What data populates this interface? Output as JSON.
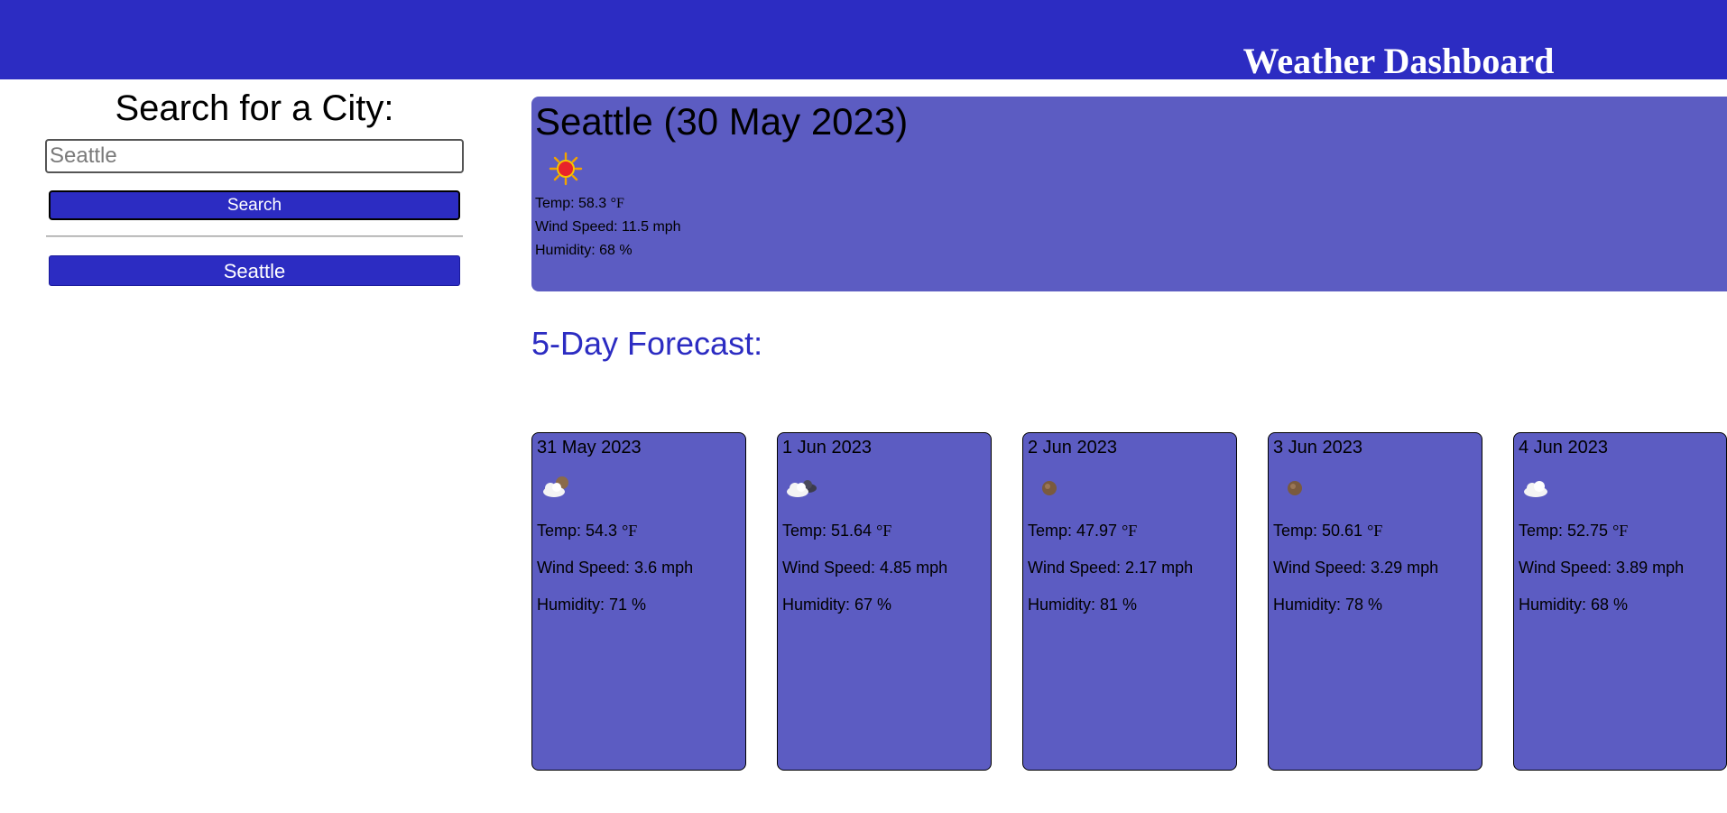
{
  "header": {
    "title": "Weather Dashboard"
  },
  "search": {
    "heading": "Search for a City:",
    "placeholder": "Seattle",
    "value": "",
    "button_label": "Search",
    "history": [
      "Seattle"
    ]
  },
  "current": {
    "title": "Seattle (30 May 2023)",
    "icon": "sun-icon",
    "temp_label": "Temp: 58.3 ",
    "temp_unit": "°F",
    "wind": "Wind Speed: 11.5 mph",
    "humidity": "Humidity: 68 %"
  },
  "forecast": {
    "heading": "5-Day Forecast:",
    "days": [
      {
        "date": "31 May 2023",
        "icon": "cloud-moon-icon",
        "temp_label": "Temp: 54.3 ",
        "temp_unit": "°F",
        "wind": "Wind Speed: 3.6 mph",
        "humidity": "Humidity: 71 %"
      },
      {
        "date": "1 Jun 2023",
        "icon": "cloud-dark-icon",
        "temp_label": "Temp: 51.64 ",
        "temp_unit": "°F",
        "wind": "Wind Speed: 4.85 mph",
        "humidity": "Humidity: 67 %"
      },
      {
        "date": "2 Jun 2023",
        "icon": "moon-icon",
        "temp_label": "Temp: 47.97 ",
        "temp_unit": "°F",
        "wind": "Wind Speed: 2.17 mph",
        "humidity": "Humidity: 81 %"
      },
      {
        "date": "3 Jun 2023",
        "icon": "moon-icon",
        "temp_label": "Temp: 50.61 ",
        "temp_unit": "°F",
        "wind": "Wind Speed: 3.29 mph",
        "humidity": "Humidity: 78 %"
      },
      {
        "date": "4 Jun 2023",
        "icon": "cloud-icon",
        "temp_label": "Temp: 52.75 ",
        "temp_unit": "°F",
        "wind": "Wind Speed: 3.89 mph",
        "humidity": "Humidity: 68 %"
      }
    ]
  },
  "colors": {
    "primary": "#2c2cc2",
    "card": "#5c5cc2"
  }
}
